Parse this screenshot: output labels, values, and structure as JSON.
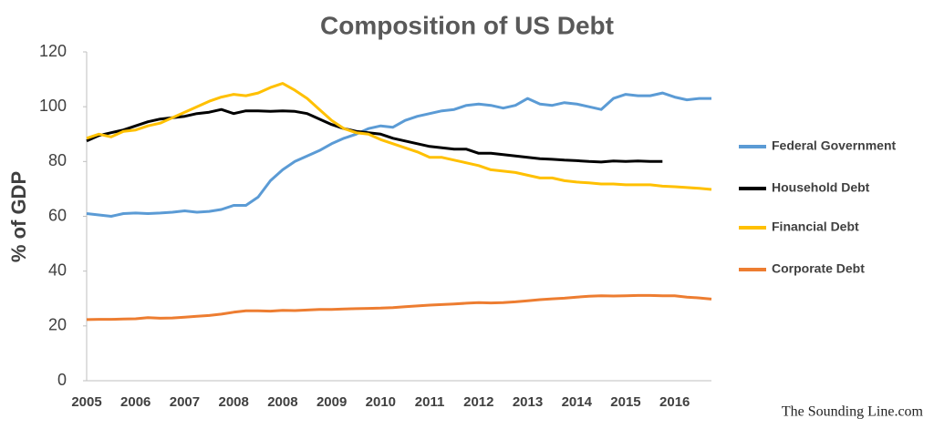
{
  "chart_data": {
    "type": "line",
    "title": "Composition of US Debt",
    "y_label": "% of GDP",
    "source": "The Sounding Line.com",
    "categories": [
      "2005",
      null,
      null,
      null,
      "2006",
      null,
      null,
      null,
      "2007",
      null,
      null,
      null,
      "2008",
      null,
      null,
      null,
      "2008",
      null,
      null,
      null,
      "2009",
      null,
      null,
      null,
      "2010",
      null,
      null,
      null,
      "2011",
      null,
      null,
      null,
      "2012",
      null,
      null,
      null,
      "2013",
      null,
      null,
      null,
      "2014",
      null,
      null,
      null,
      "2015",
      null,
      null,
      null,
      "2016",
      null,
      null,
      null
    ],
    "ylim": [
      0,
      120
    ],
    "yticks": [
      0,
      20,
      40,
      60,
      80,
      100,
      120
    ],
    "grid": false,
    "series": [
      {
        "name": "Federal Government",
        "color": "#5b9bd5",
        "values": [
          61,
          60.5,
          60,
          61,
          61.2,
          61,
          61.2,
          61.5,
          62,
          61.5,
          61.8,
          62.5,
          64,
          64,
          67,
          73,
          77,
          80,
          82,
          84,
          86.5,
          88.5,
          90,
          92,
          93,
          92.5,
          95,
          96.5,
          97.5,
          98.5,
          99,
          100.5,
          101,
          100.5,
          99.5,
          100.5,
          103,
          101,
          100.5,
          101.5,
          101,
          100,
          99,
          103,
          104.5,
          104,
          104,
          105,
          103.5,
          102.5,
          103,
          103
        ]
      },
      {
        "name": "Household Debt",
        "color": "#000000",
        "values": [
          87.5,
          89.5,
          90.5,
          91.5,
          93,
          94.5,
          95.5,
          96,
          96.5,
          97.5,
          98,
          99,
          97.5,
          98.5,
          98.5,
          98.3,
          98.5,
          98.3,
          97.5,
          95.5,
          93.5,
          92,
          91,
          90.5,
          90,
          88.5,
          87.5,
          86.5,
          85.5,
          85,
          84.5,
          84.5,
          83,
          83,
          82.5,
          82,
          81.5,
          81,
          80.8,
          80.5,
          80.3,
          80,
          79.8,
          80.2,
          80,
          80.2,
          80,
          80,
          null,
          null,
          null,
          null
        ]
      },
      {
        "name": "Financial Debt",
        "color": "#ffc000",
        "values": [
          88.5,
          90,
          89,
          91,
          91.5,
          93,
          94,
          96,
          98,
          100,
          102,
          103.5,
          104.5,
          104,
          105,
          107,
          108.5,
          106,
          103,
          99,
          95,
          92,
          90.5,
          90,
          88,
          86.5,
          85,
          83.5,
          81.5,
          81.5,
          80.5,
          79.5,
          78.5,
          77,
          76.5,
          76,
          75,
          74,
          74,
          73,
          72.5,
          72.2,
          71.8,
          71.8,
          71.5,
          71.5,
          71.5,
          71,
          70.8,
          70.5,
          70.2,
          69.8
        ]
      },
      {
        "name": "Corporate Debt",
        "color": "#ed7d31",
        "values": [
          22.3,
          22.4,
          22.4,
          22.5,
          22.6,
          23,
          22.8,
          22.9,
          23.2,
          23.5,
          23.8,
          24.3,
          25,
          25.5,
          25.5,
          25.4,
          25.7,
          25.6,
          25.8,
          26,
          26,
          26.2,
          26.3,
          26.4,
          26.5,
          26.7,
          27,
          27.3,
          27.6,
          27.8,
          28,
          28.3,
          28.5,
          28.4,
          28.5,
          28.8,
          29.2,
          29.6,
          29.9,
          30.1,
          30.5,
          30.8,
          31,
          30.9,
          31,
          31.1,
          31.1,
          31,
          31,
          30.5,
          30.2,
          29.8
        ]
      }
    ]
  }
}
